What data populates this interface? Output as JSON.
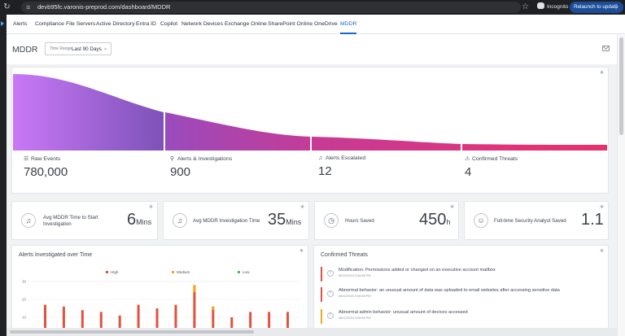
{
  "browser": {
    "url": "devb95fc.varonis-preprod.com/dashboard/MDDR",
    "incognito_label": "Incognito",
    "relaunch_label": "Relaunch to update"
  },
  "nav": {
    "tabs": [
      {
        "label": "Alerts"
      },
      {
        "label": "Compliance"
      },
      {
        "label": "File Servers"
      },
      {
        "label": "Active Directory"
      },
      {
        "label": "Entra ID"
      },
      {
        "label": "Copilot"
      },
      {
        "label": "Network Devices"
      },
      {
        "label": "Exchange Online"
      },
      {
        "label": "SharePoint Online"
      },
      {
        "label": "OneDrive"
      },
      {
        "label": "MDDR"
      }
    ],
    "active_tab": "MDDR"
  },
  "header": {
    "title": "MDDR",
    "time_range_label": "Time Range",
    "time_range_value": "Last 90 Days"
  },
  "funnel": {
    "metrics": [
      {
        "label": "Raw Events",
        "value": "780,000",
        "icon": "list-icon"
      },
      {
        "label": "Alerts & Investigations",
        "value": "900",
        "icon": "alert-investigate-icon"
      },
      {
        "label": "Alerts Escalated",
        "value": "12",
        "icon": "bell-icon"
      },
      {
        "label": "Confirmed Threats",
        "value": "4",
        "icon": "warning-icon"
      }
    ],
    "colors": [
      "#c26cf4",
      "#a84fc6",
      "#c03a9d",
      "#e03270"
    ]
  },
  "kpis": [
    {
      "label": "Avg MDDR Time to Start Investigation",
      "value": "6",
      "unit": "Mins",
      "icon": "bell-icon"
    },
    {
      "label": "Avg MDDR Investigation Time",
      "value": "35",
      "unit": "Mins",
      "icon": "bell-icon"
    },
    {
      "label": "Hours Saved",
      "value": "450",
      "unit": "h",
      "icon": "clock-icon"
    },
    {
      "label": "Full-time Security Analyst Saved",
      "value": "1.1",
      "unit": "",
      "icon": "analyst-icon"
    }
  ],
  "alerts_chart": {
    "title": "Alerts Investigated over Time",
    "legend": [
      {
        "name": "High",
        "color": "#e0533e"
      },
      {
        "name": "Medium",
        "color": "#f2a91e"
      },
      {
        "name": "Low",
        "color": "#56b55a"
      }
    ]
  },
  "chart_data": {
    "type": "bar",
    "title": "Alerts Investigated over Time",
    "yticks": [
      10,
      20,
      30
    ],
    "ylim": [
      0,
      33
    ],
    "series": [
      {
        "name": "High",
        "values": [
          17,
          16,
          14,
          13,
          11,
          17,
          15,
          17,
          24,
          14,
          10,
          13,
          13,
          13
        ]
      },
      {
        "name": "Medium",
        "values": [
          0,
          0,
          0,
          0,
          0,
          0,
          0,
          0,
          4,
          2,
          0,
          0,
          0,
          0
        ]
      }
    ]
  },
  "threats": {
    "title": "Confirmed Threats",
    "items": [
      {
        "title": "Modification: Permissions added or changed on an executive account mailbox",
        "date": "08/10/2024 3:56:58 PM",
        "color": "#e0533e"
      },
      {
        "title": "Abnormal behavior: an unusual amount of data was uploaded to email websites after accessing sensitive data",
        "date": "08/10/2024 3:56:58 PM",
        "color": "#e0533e"
      },
      {
        "title": "Abnormal admin behavior: unusual amount of devices accessed",
        "date": "08/10/2024 3:56:58 PM",
        "color": "#f2a91e"
      }
    ]
  }
}
